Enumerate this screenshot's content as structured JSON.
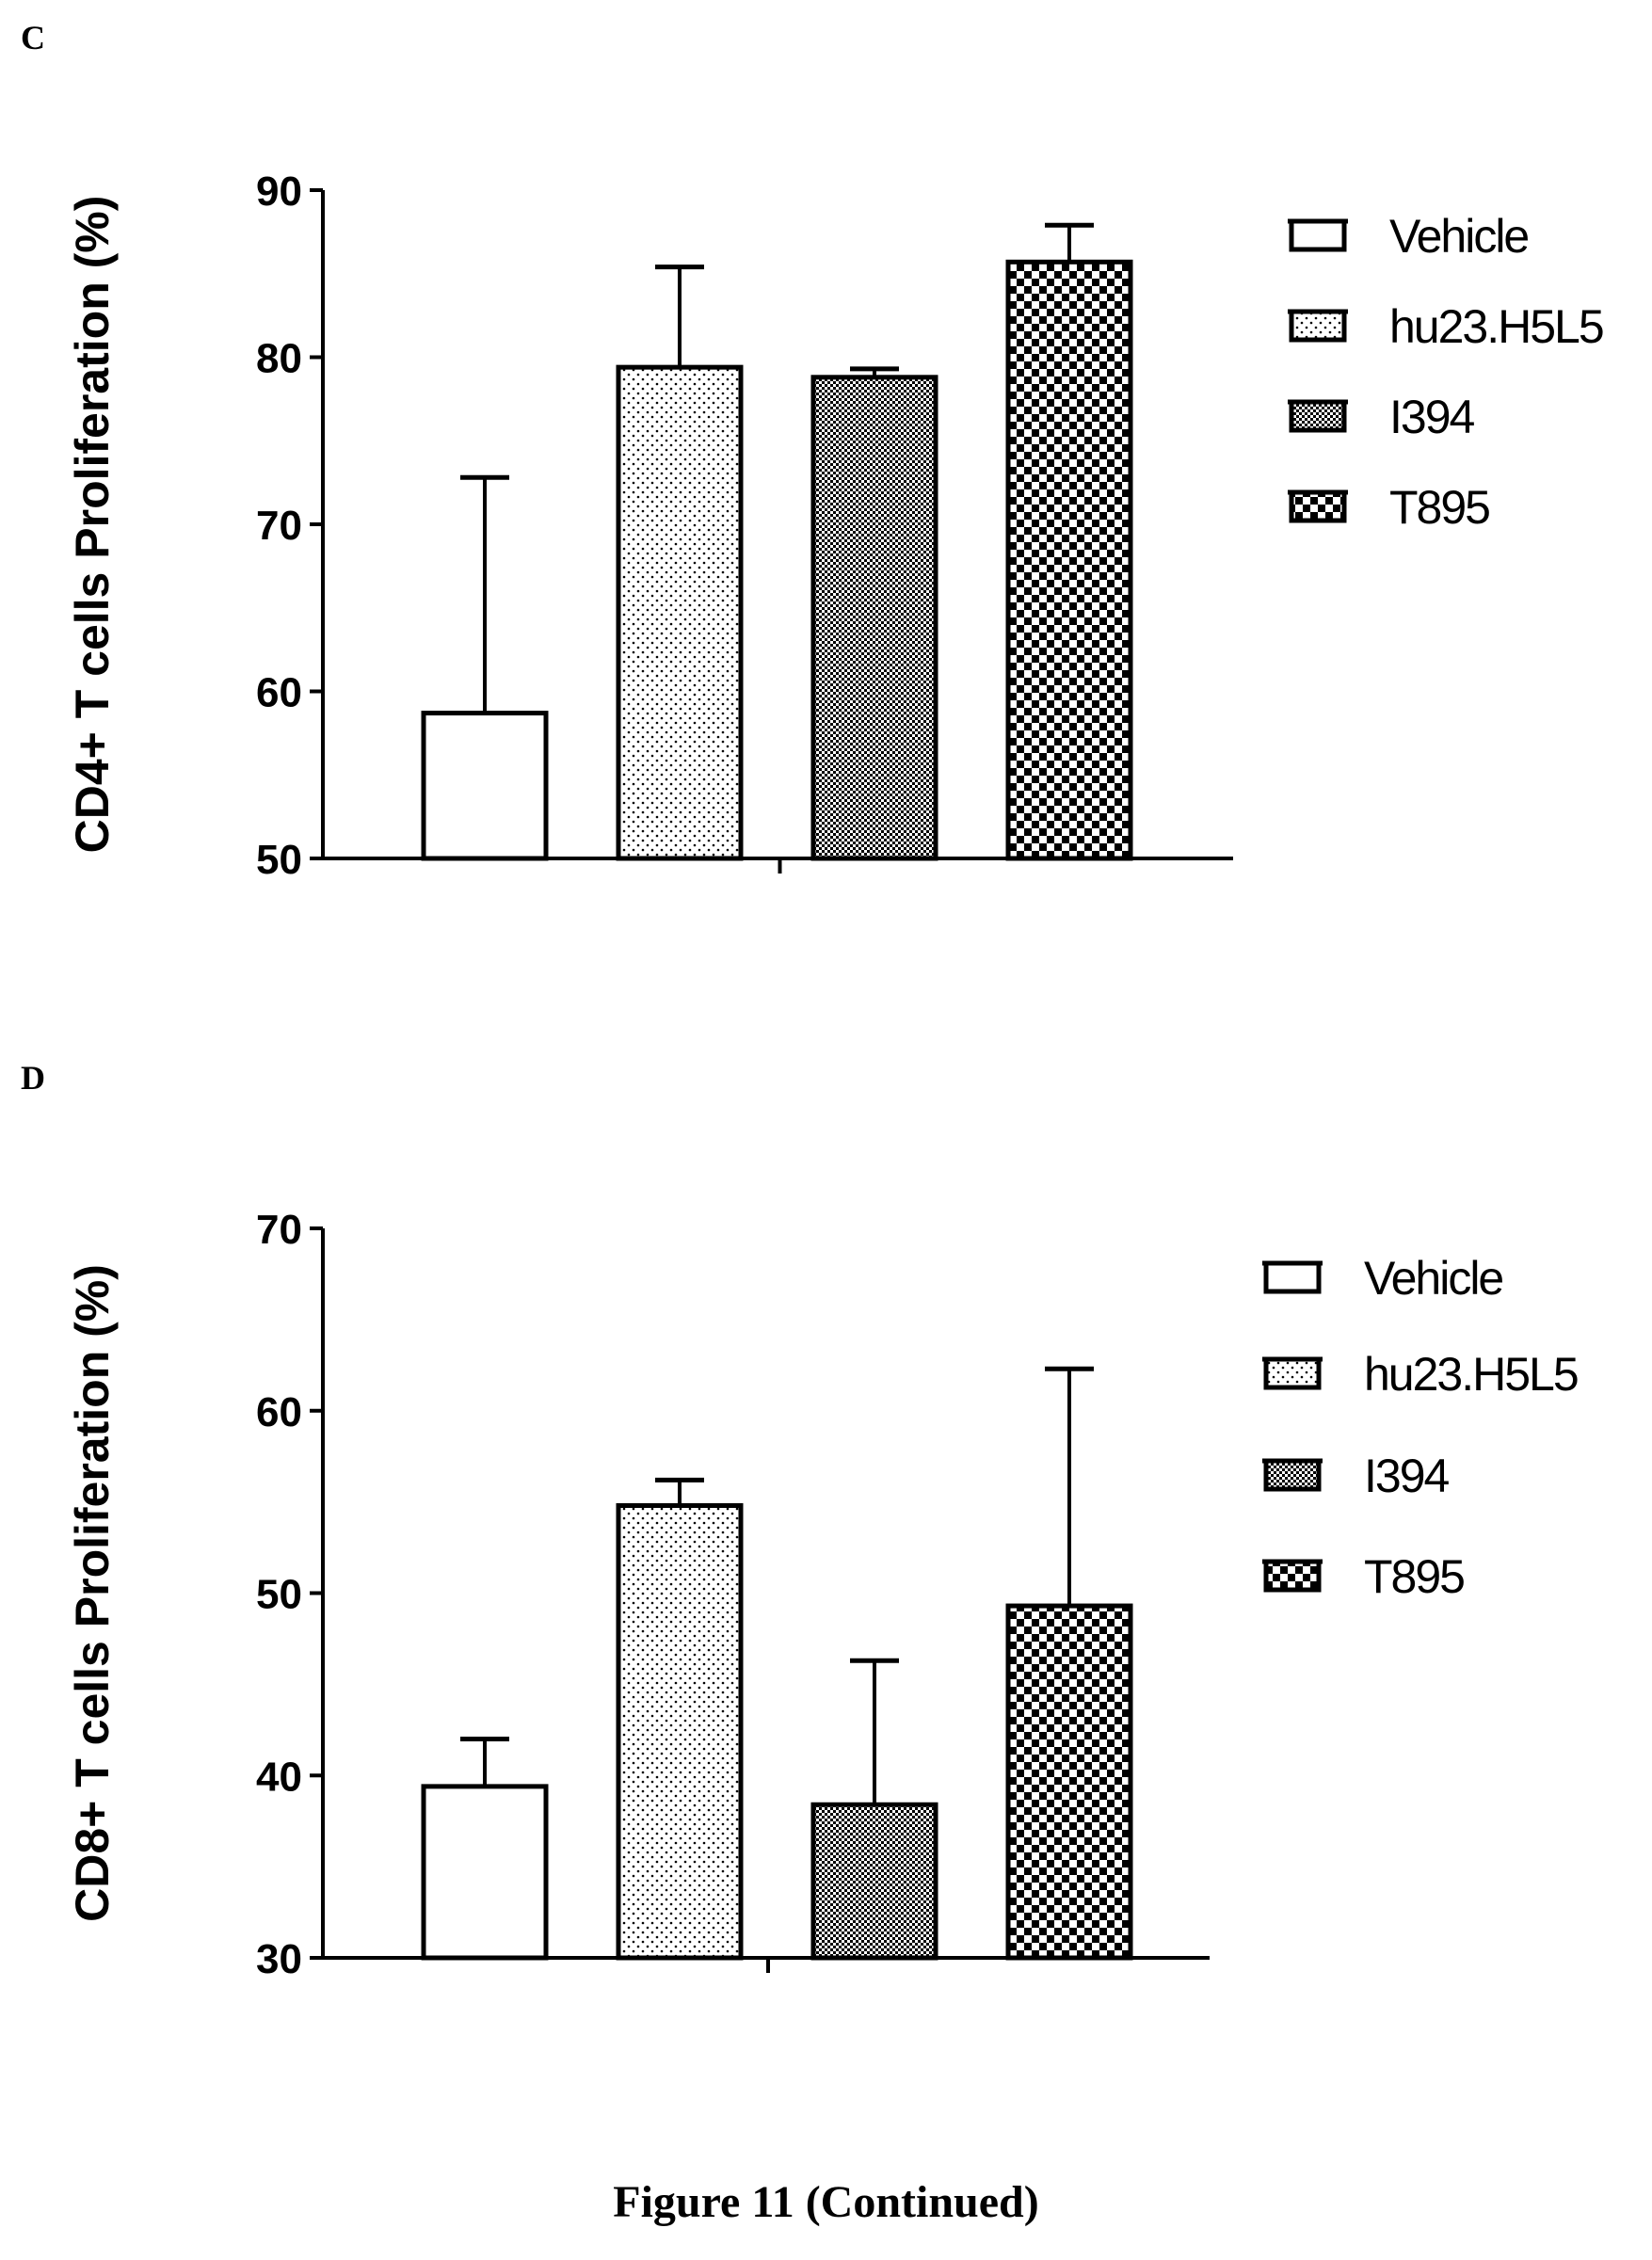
{
  "figure_caption": "Figure 11 (Continued)",
  "legend": [
    "Vehicle",
    "hu23.H5L5",
    "I394",
    "T895"
  ],
  "chart_data": [
    {
      "panel": "C",
      "type": "bar",
      "ylabel": "CD4+ T cells Proliferation (%)",
      "ylim": [
        50,
        90
      ],
      "yticks": [
        50,
        60,
        70,
        80,
        90
      ],
      "series": [
        {
          "name": "Vehicle",
          "value": 58.7,
          "error": 14.1,
          "pattern": "none"
        },
        {
          "name": "hu23.H5L5",
          "value": 79.4,
          "error": 6.0,
          "pattern": "dots"
        },
        {
          "name": "I394",
          "value": 78.8,
          "error": 0.5,
          "pattern": "fine-check"
        },
        {
          "name": "T895",
          "value": 85.7,
          "error": 2.2,
          "pattern": "checker"
        }
      ]
    },
    {
      "panel": "D",
      "type": "bar",
      "ylabel": "CD8+ T cells Proliferation (%)",
      "ylim": [
        30,
        70
      ],
      "yticks": [
        30,
        40,
        50,
        60,
        70
      ],
      "series": [
        {
          "name": "Vehicle",
          "value": 39.4,
          "error": 2.6,
          "pattern": "none"
        },
        {
          "name": "hu23.H5L5",
          "value": 54.8,
          "error": 1.4,
          "pattern": "dots"
        },
        {
          "name": "I394",
          "value": 38.4,
          "error": 7.9,
          "pattern": "fine-check"
        },
        {
          "name": "T895",
          "value": 49.3,
          "error": 13.0,
          "pattern": "checker"
        }
      ]
    }
  ]
}
